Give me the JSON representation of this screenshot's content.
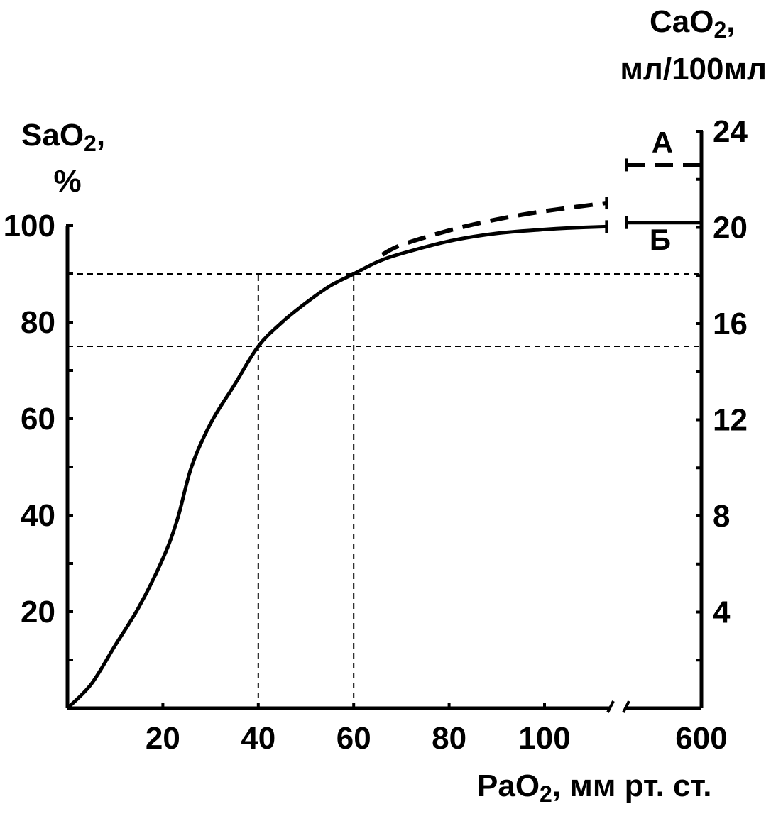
{
  "chart_data": {
    "type": "line",
    "left_axis": {
      "title": "SaO",
      "title_sub": "2",
      "title_suffix": ",",
      "unit": "%",
      "range": [
        0,
        100
      ],
      "ticks": [
        20,
        40,
        60,
        80,
        100
      ]
    },
    "right_axis": {
      "title": "CaO",
      "title_sub": "2",
      "title_suffix": ",",
      "unit": "мл/100мл",
      "range": [
        0,
        24
      ],
      "ticks": [
        4,
        8,
        12,
        16,
        20,
        24
      ]
    },
    "x_axis": {
      "title": "PaO",
      "title_sub": "2",
      "title_suffix": ", мм рт. ст.",
      "range": [
        0,
        115
      ],
      "ticks": [
        20,
        40,
        60,
        80,
        100
      ],
      "break_tick": "600"
    },
    "series": [
      {
        "name": "Б",
        "style": "solid",
        "x": [
          0,
          5,
          10,
          15,
          20,
          23,
          26,
          30,
          35,
          40,
          45,
          50,
          55,
          60,
          65,
          70,
          80,
          90,
          100,
          105,
          113
        ],
        "y": [
          0,
          5,
          13,
          21,
          31,
          39,
          50,
          59,
          67,
          75,
          80,
          84,
          87.5,
          90,
          92.5,
          94.2,
          96.8,
          98.4,
          99.2,
          99.5,
          99.8
        ],
        "break_value": 20.2
      },
      {
        "name": "А",
        "style": "dashed",
        "x": [
          66,
          70,
          80,
          90,
          100,
          113
        ],
        "y": [
          94,
          96,
          99,
          101.3,
          103,
          104.7
        ],
        "break_value": 22.6
      }
    ],
    "reference_lines": {
      "x": [
        40,
        60
      ],
      "y": [
        75,
        90
      ]
    },
    "grid": false
  }
}
